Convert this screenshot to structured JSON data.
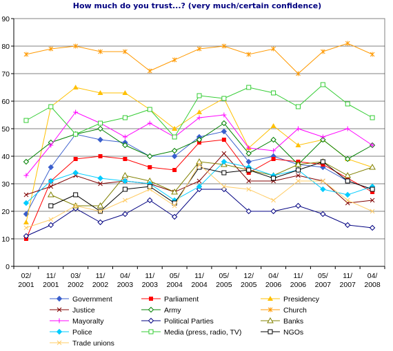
{
  "chart_data": {
    "type": "line",
    "title": "How much do you trust...? (very much/certain confidence)",
    "xlabel": "",
    "ylabel": "",
    "ylim": [
      0,
      90
    ],
    "yticks": [
      0,
      10,
      20,
      30,
      40,
      50,
      60,
      70,
      80,
      90
    ],
    "grid": "horizontal",
    "legend_position": "bottom",
    "categories": [
      [
        "02/",
        "2001"
      ],
      [
        "11/",
        "2001"
      ],
      [
        "03/",
        "2002"
      ],
      [
        "11/",
        "2002"
      ],
      [
        "04/",
        "2003"
      ],
      [
        "11/",
        "2003"
      ],
      [
        "05/",
        "2004"
      ],
      [
        "11/",
        "2004"
      ],
      [
        "05/",
        "2005"
      ],
      [
        "12/",
        "2005"
      ],
      [
        "04/",
        "2006"
      ],
      [
        "11/",
        "2006"
      ],
      [
        "05/",
        "2007"
      ],
      [
        "11/",
        "2007"
      ],
      [
        "04/",
        "2008"
      ]
    ],
    "x": [
      0,
      1,
      2,
      3,
      4,
      5,
      6,
      7,
      7.6,
      8.2,
      9,
      10,
      11,
      12,
      13
    ],
    "series": [
      {
        "name": "Government",
        "color": "#3A5FCD",
        "marker": "diamond-filled",
        "x": [
          0,
          1,
          2,
          3,
          4,
          5,
          6,
          7,
          8,
          9,
          10,
          11,
          12,
          13,
          14
        ],
        "values": [
          19,
          36,
          48,
          46,
          45,
          40,
          40,
          47,
          49,
          38,
          40,
          37,
          36,
          31,
          28
        ]
      },
      {
        "name": "Parliament",
        "color": "#FF0000",
        "marker": "square-filled",
        "x": [
          0,
          1,
          2,
          3,
          4,
          5,
          6,
          7,
          8,
          9,
          10,
          11,
          12,
          13,
          14
        ],
        "values": [
          10,
          31,
          39,
          40,
          39,
          36,
          35,
          45,
          46,
          34,
          39,
          38,
          37,
          32,
          27
        ]
      },
      {
        "name": "Presidency",
        "color": "#FFC000",
        "marker": "triangle-filled",
        "x": [
          0,
          1,
          2,
          3,
          4,
          5,
          6,
          7,
          8,
          9,
          10,
          11,
          12,
          13,
          14
        ],
        "values": [
          16,
          58,
          65,
          63,
          63,
          57,
          50,
          56,
          61,
          43,
          51,
          44,
          46,
          39,
          36
        ]
      },
      {
        "name": "Justice",
        "color": "#800000",
        "marker": "x",
        "x": [
          0,
          1,
          2,
          3,
          4,
          5,
          6,
          7,
          8,
          9,
          10,
          11,
          12,
          13,
          14
        ],
        "values": [
          26,
          29,
          33,
          30,
          31,
          30,
          27,
          31,
          41,
          31,
          31,
          33,
          31,
          23,
          24
        ]
      },
      {
        "name": "Army",
        "color": "#008000",
        "marker": "diamond-open",
        "x": [
          0,
          1,
          2,
          3,
          4,
          5,
          6,
          7,
          8,
          9,
          10,
          11,
          12,
          13,
          14
        ],
        "values": [
          38,
          45,
          48,
          50,
          44,
          40,
          42,
          46,
          52,
          41,
          46,
          37,
          46,
          39,
          44
        ]
      },
      {
        "name": "Church",
        "color": "#FF9900",
        "marker": "asterisk",
        "x": [
          0,
          1,
          2,
          3,
          4,
          5,
          6,
          7,
          8,
          9,
          10,
          11,
          12,
          13,
          14
        ],
        "values": [
          77,
          79,
          80,
          78,
          78,
          71,
          75,
          79,
          80,
          77,
          79,
          70,
          78,
          81,
          77
        ]
      },
      {
        "name": "Mayoralty",
        "color": "#FF00FF",
        "marker": "plus",
        "x": [
          0,
          1,
          2,
          3,
          4,
          5,
          6,
          7,
          8,
          9,
          10,
          11,
          12,
          13,
          14
        ],
        "values": [
          33,
          44,
          56,
          52,
          47,
          52,
          47,
          54,
          55,
          43,
          42,
          50,
          47,
          50,
          44
        ]
      },
      {
        "name": "Political Parties",
        "color": "#000080",
        "marker": "diamond-open",
        "x": [
          0,
          1,
          2,
          3,
          4,
          5,
          6,
          7,
          8,
          9,
          10,
          11,
          12,
          13,
          14
        ],
        "values": [
          11,
          15,
          21,
          16,
          19,
          24,
          18,
          28,
          28,
          20,
          20,
          22,
          19,
          15,
          14
        ]
      },
      {
        "name": "Banks",
        "color": "#808000",
        "marker": "triangle-open",
        "x": [
          0,
          1,
          2,
          3,
          4,
          5,
          6,
          7,
          8,
          9,
          10,
          11,
          12,
          13,
          14
        ],
        "values": [
          null,
          26,
          22,
          22,
          33,
          31,
          27,
          38,
          37,
          35,
          33,
          37,
          38,
          33,
          36
        ]
      },
      {
        "name": "Police",
        "color": "#00CCFF",
        "marker": "diamond-filled",
        "x": [
          0,
          1,
          2,
          3,
          4,
          5,
          6,
          7,
          8,
          9,
          10,
          11,
          12,
          13,
          14
        ],
        "values": [
          23,
          31,
          34,
          32,
          31,
          30,
          24,
          29,
          38,
          36,
          33,
          35,
          28,
          26,
          29
        ]
      },
      {
        "name": "Media (press, radio, TV)",
        "color": "#33CC33",
        "marker": "square-open",
        "x": [
          0,
          1,
          2,
          3,
          4,
          5,
          6,
          7,
          8,
          9,
          10,
          11,
          12,
          13,
          14
        ],
        "values": [
          53,
          58,
          48,
          52,
          54,
          57,
          47,
          62,
          61,
          65,
          63,
          58,
          66,
          59,
          54
        ]
      },
      {
        "name": "NGOs",
        "color": "#000000",
        "marker": "square-open",
        "x": [
          1,
          2,
          3,
          4,
          5,
          6,
          7,
          8,
          9,
          10,
          11,
          12,
          13,
          14
        ],
        "values": [
          22,
          26,
          20,
          28,
          29,
          23,
          36,
          34,
          35,
          32,
          35,
          38,
          31,
          28
        ]
      },
      {
        "name": "Trade unions",
        "color": "#FFCC66",
        "marker": "x",
        "x": [
          0,
          1,
          2,
          3,
          4,
          5,
          6,
          7,
          8,
          9,
          10,
          11,
          12,
          13,
          14
        ],
        "values": [
          14,
          17,
          22,
          20,
          24,
          28,
          22,
          37,
          29,
          28,
          24,
          31,
          31,
          24,
          20
        ]
      }
    ]
  }
}
